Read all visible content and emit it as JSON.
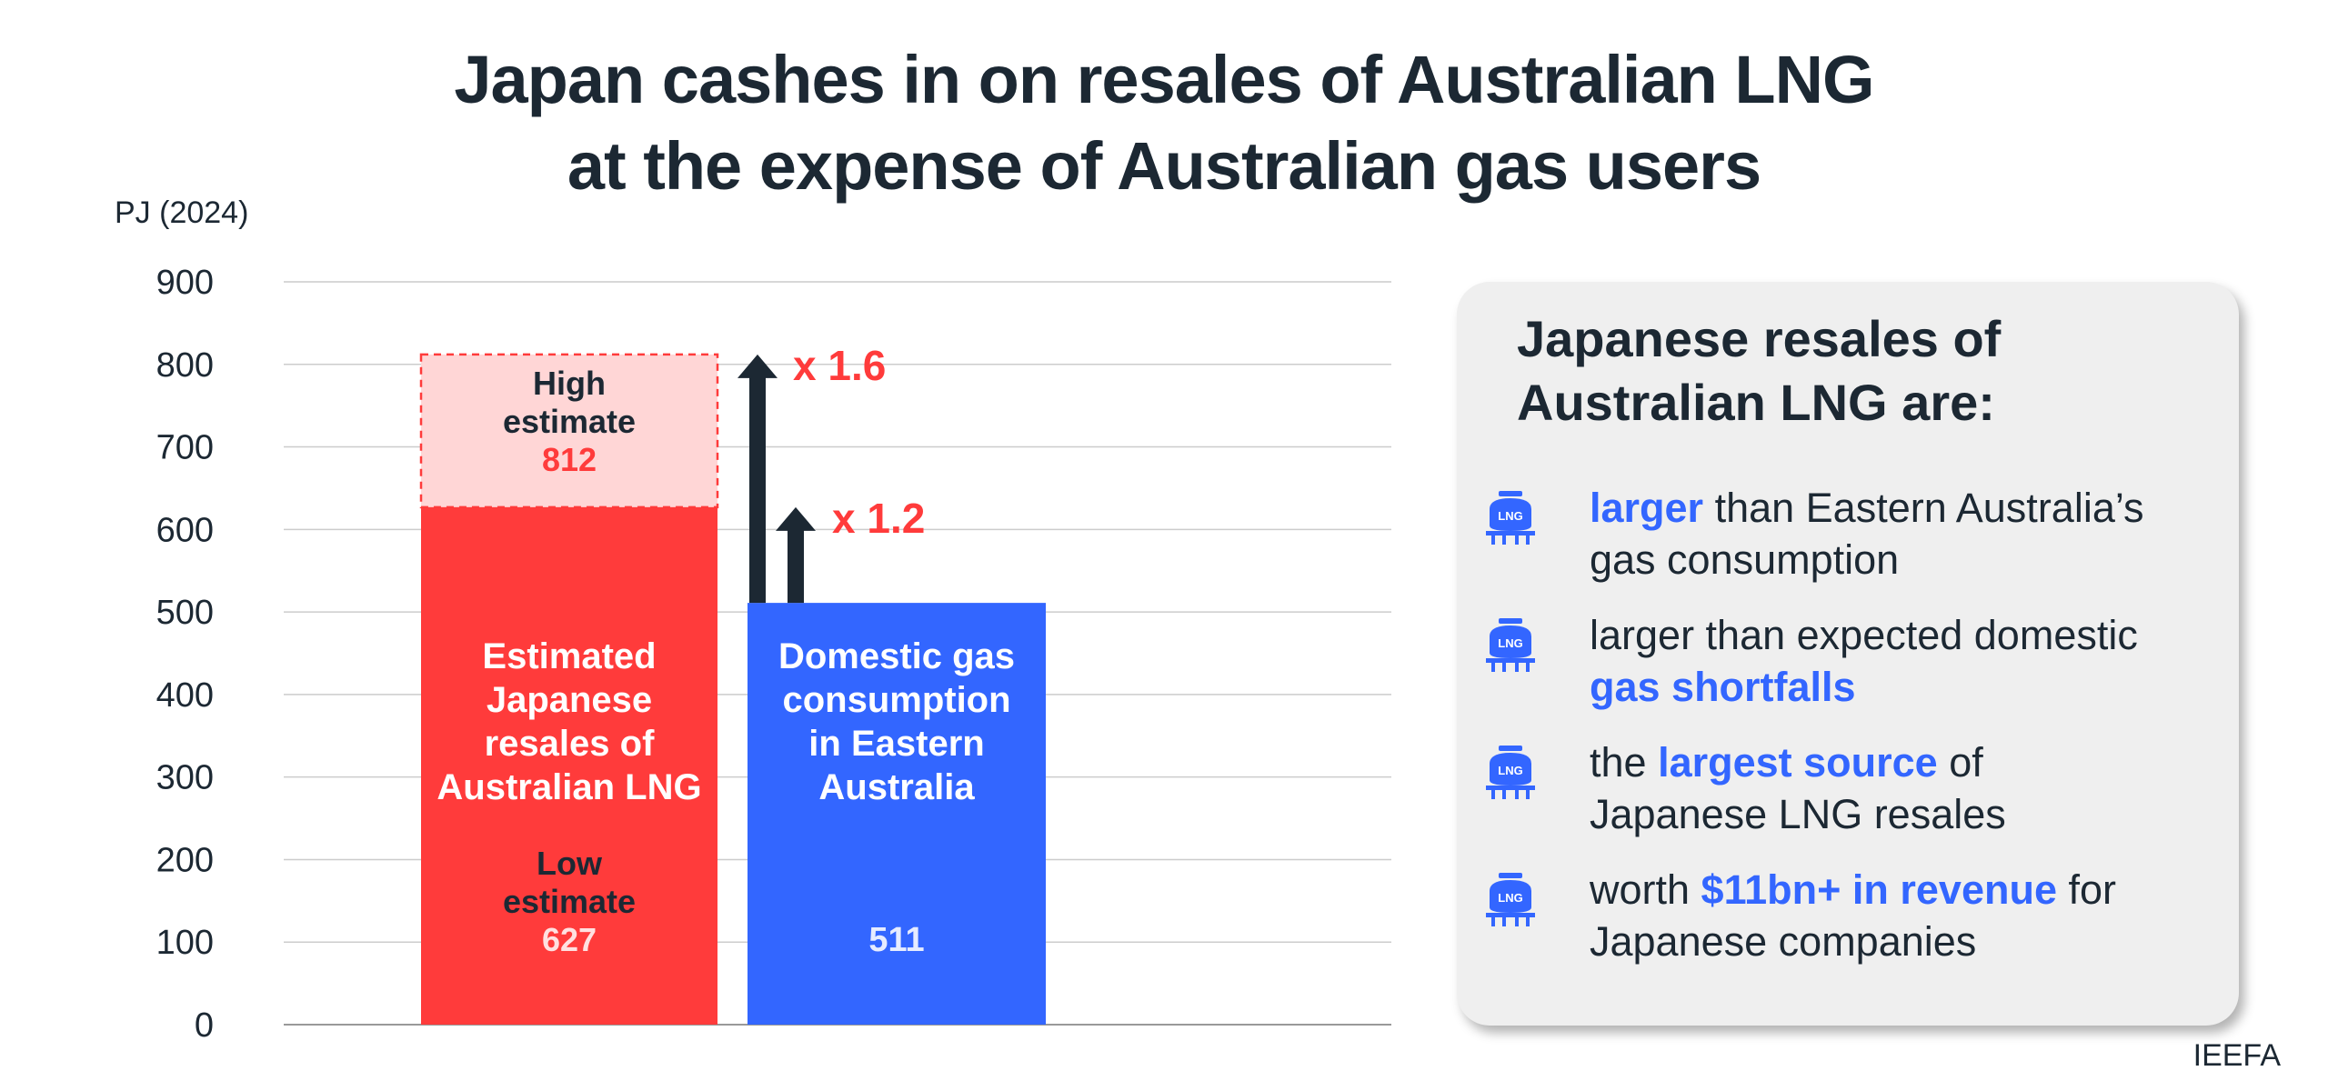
{
  "title": {
    "line1": "Japan cashes in on resales of Australian LNG",
    "line2": "at the expense of Australian gas users"
  },
  "chart_data": {
    "type": "bar",
    "ylabel": "PJ (2024)",
    "ylim": [
      0,
      900
    ],
    "yticks": [
      "0",
      "100",
      "200",
      "300",
      "400",
      "500",
      "600",
      "700",
      "800",
      "900"
    ],
    "grid": true,
    "bars": [
      {
        "name": "Estimated Japanese resales of Australian LNG",
        "label_lines": [
          "Estimated",
          "Japanese",
          "resales of",
          "Australian LNG"
        ],
        "low": 627,
        "high": 812,
        "low_label_lines": [
          "Low",
          "estimate"
        ],
        "low_value_label": "627",
        "high_label_lines": [
          "High",
          "estimate"
        ],
        "high_value_label": "812",
        "color": "#ff3b3b",
        "high_color": "#ffd6d6"
      },
      {
        "name": "Domestic gas consumption in Eastern Australia",
        "label_lines": [
          "Domestic gas",
          "consumption",
          "in Eastern",
          "Australia"
        ],
        "value": 511,
        "value_label": "511",
        "color": "#3366ff"
      }
    ],
    "annotations": [
      {
        "text": "x 1.6",
        "from": 511,
        "to": 812
      },
      {
        "text": "x 1.2",
        "from": 511,
        "to": 627
      }
    ],
    "colors": {
      "arrow": "#1c2833",
      "annotation": "#ff3b3b",
      "grid": "#cccccc",
      "axis_text": "#1c2833"
    }
  },
  "panel": {
    "heading_line1": "Japanese resales of",
    "heading_line2": "Australian LNG are:",
    "icon": "lng-tank-icon",
    "bullets": [
      {
        "l1_hl": "larger",
        "l1_rest": " than Eastern Australia’s",
        "l2_pre": "gas consumption",
        "l2_hl": "",
        "l2_post": ""
      },
      {
        "l1_hl": "",
        "l1_rest": "larger than expected domestic",
        "l2_pre": "",
        "l2_hl": "gas shortfalls",
        "l2_post": ""
      },
      {
        "l1_pre": "the ",
        "l1_hl": "largest source",
        "l1_rest": " of",
        "l2_pre": "Japanese LNG resales",
        "l2_hl": "",
        "l2_post": ""
      },
      {
        "l1_pre": "worth ",
        "l1_hl": "$11bn+ in revenue",
        "l1_rest": " for",
        "l2_pre": "Japanese companies",
        "l2_hl": "",
        "l2_post": ""
      }
    ],
    "icon_text": "LNG"
  },
  "source": "IEEFA"
}
